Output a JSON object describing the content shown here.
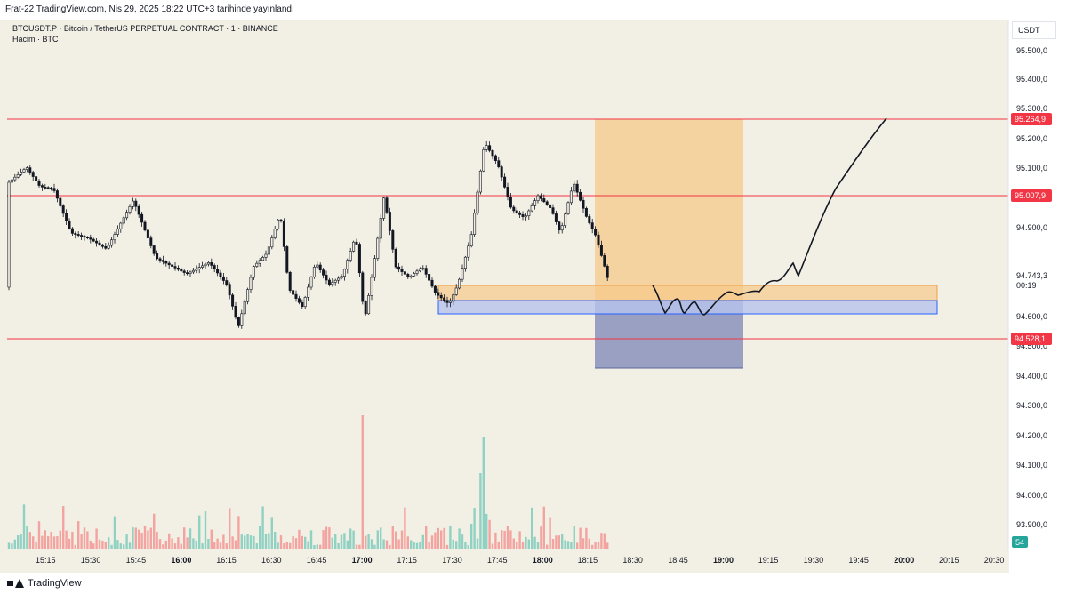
{
  "header": {
    "publish_text": "Frat-22 TradingView.com, Nis 29, 2025 18:22 UTC+3 tarihinde yayınlandı"
  },
  "legend": {
    "symbol_line": "BTCUSDT.P · Bitcoin / TetherUS PERPETUAL CONTRACT · 1 · BINANCE",
    "volume_line": "Hacim · BTC"
  },
  "price_axis": {
    "currency": "USDT",
    "ticks": [
      "95.500,0",
      "95.400,0",
      "95.300,0",
      "95.200,0",
      "95.100,0",
      "94.900,0",
      "94.600,0",
      "94.500,0",
      "94.400,0",
      "94.300,0",
      "94.200,0",
      "94.100,0",
      "94.000,0",
      "93.900,0"
    ],
    "level_labels": [
      {
        "text": "95.264,9",
        "color": "#f23645"
      },
      {
        "text": "95.007,9",
        "color": "#f23645"
      },
      {
        "text": "94.528,1",
        "color": "#f23645"
      }
    ],
    "current_price": "94.743,3",
    "countdown": "00:19",
    "volume_badge": "54",
    "volume_badge_color": "#26a69a"
  },
  "time_axis": {
    "labels": [
      {
        "text": "15:15",
        "bold": false
      },
      {
        "text": "15:30",
        "bold": false
      },
      {
        "text": "15:45",
        "bold": false
      },
      {
        "text": "16:00",
        "bold": true
      },
      {
        "text": "16:15",
        "bold": false
      },
      {
        "text": "16:30",
        "bold": false
      },
      {
        "text": "16:45",
        "bold": false
      },
      {
        "text": "17:00",
        "bold": true
      },
      {
        "text": "17:15",
        "bold": false
      },
      {
        "text": "17:30",
        "bold": false
      },
      {
        "text": "17:45",
        "bold": false
      },
      {
        "text": "18:00",
        "bold": true
      },
      {
        "text": "18:15",
        "bold": false
      },
      {
        "text": "18:30",
        "bold": false
      },
      {
        "text": "18:45",
        "bold": false
      },
      {
        "text": "19:00",
        "bold": true
      },
      {
        "text": "19:15",
        "bold": false
      },
      {
        "text": "19:30",
        "bold": false
      },
      {
        "text": "19:45",
        "bold": false
      },
      {
        "text": "20:00",
        "bold": true
      },
      {
        "text": "20:15",
        "bold": false
      },
      {
        "text": "20:30",
        "bold": false
      }
    ]
  },
  "colors": {
    "chart_bg": "#f2efe4",
    "candle": "#131722",
    "level_line": "#f23645",
    "long_zone_fill": "#f6c98a",
    "short_zone_fill": "#7b86b6",
    "volume_up": "#8fd1c3",
    "volume_down": "#f3a3a0"
  },
  "footer": {
    "brand": "TradingView"
  }
}
